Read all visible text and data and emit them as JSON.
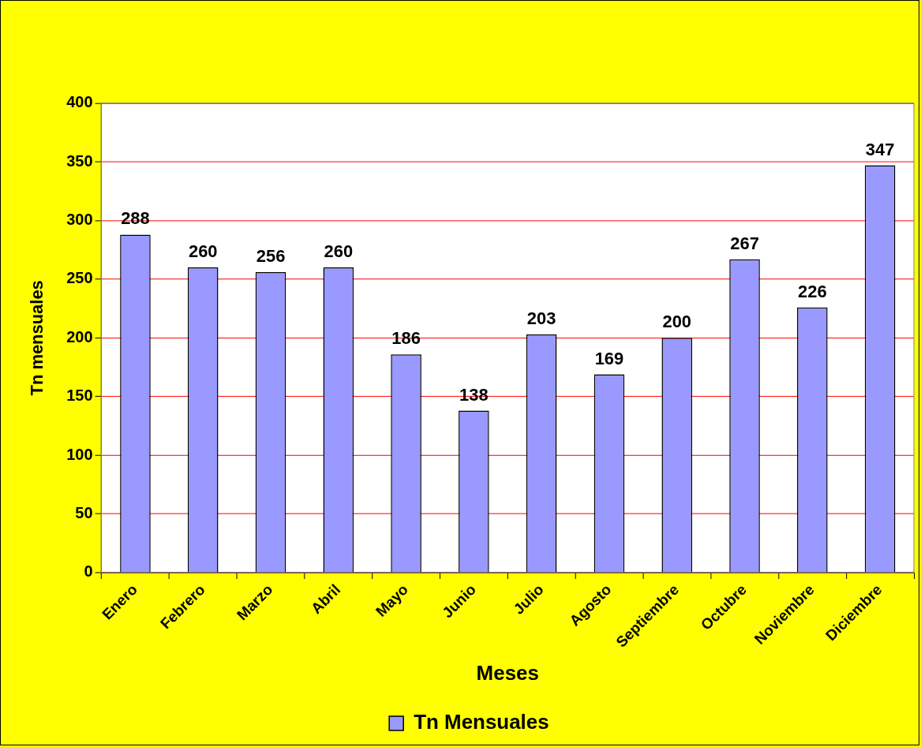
{
  "chart_data": {
    "type": "bar",
    "xlabel": "Meses",
    "ylabel": "Tn mensuales",
    "categories": [
      "Enero",
      "Febrero",
      "Marzo",
      "Abril",
      "Mayo",
      "Junio",
      "Julio",
      "Agosto",
      "Septiembre",
      "Octubre",
      "Noviembre",
      "Diciembre"
    ],
    "series": [
      {
        "name": "Tn Mensuales",
        "color": "#9999ff",
        "values": [
          288,
          260,
          256,
          260,
          186,
          138,
          203,
          169,
          200,
          267,
          226,
          347
        ]
      }
    ],
    "ylim": [
      0,
      400
    ],
    "yticks": [
      0,
      50,
      100,
      150,
      200,
      250,
      300,
      350,
      400
    ],
    "grid": "y",
    "legend": "bottom",
    "data_labels": true
  }
}
